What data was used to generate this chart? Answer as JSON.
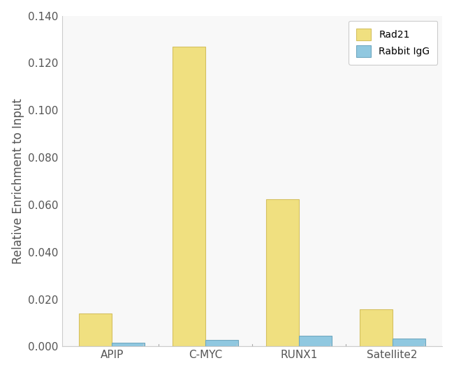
{
  "categories": [
    "APIP",
    "C-MYC",
    "RUNX1",
    "Satellite2"
  ],
  "rad21_values": [
    0.014,
    0.127,
    0.0625,
    0.0158
  ],
  "rabbit_igg_values": [
    0.0017,
    0.0027,
    0.0045,
    0.0033
  ],
  "rad21_color": "#F0E080",
  "rabbit_igg_color": "#90C8E0",
  "rad21_edge_color": "#D4C060",
  "rabbit_igg_edge_color": "#70A8C0",
  "ylabel": "Relative Enrichment to Input",
  "ylim": [
    0,
    0.14
  ],
  "yticks": [
    0.0,
    0.02,
    0.04,
    0.06,
    0.08,
    0.1,
    0.12,
    0.14
  ],
  "legend_labels": [
    "Rad21",
    "Rabbit IgG"
  ],
  "bar_width": 0.35,
  "background_color": "#ffffff",
  "plot_background_color": "#f8f8f8",
  "tick_label_fontsize": 11,
  "axis_label_fontsize": 12
}
